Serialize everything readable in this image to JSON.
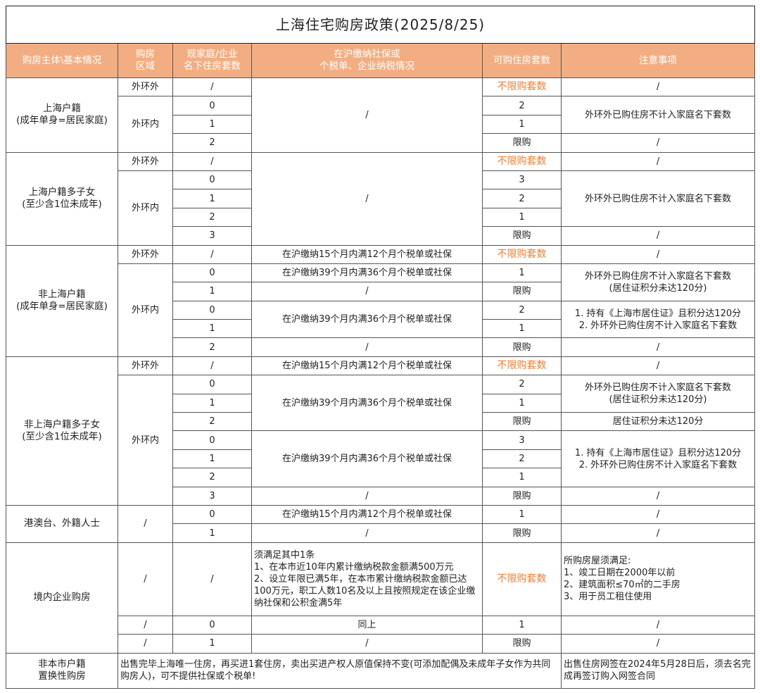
{
  "title": "上海住宅购房政策(2025/8/25)",
  "headers": [
    "购房主体\\基本情况",
    "购房\n区域",
    "现家庭/企业\n名下住房套数",
    "在沪缴纳社保或\n个税单、企业纳税情况",
    "可购住房套数",
    "注意事项"
  ],
  "colors": {
    "header_bg": "#f2ae82",
    "highlight_text": "#ee7d31"
  },
  "groups": [
    "上海户籍\n(成年单身=居民家庭)",
    "上海户籍多子女\n(至少含1位未成年)",
    "非上海户籍\n(成年单身=居民家庭)",
    "非上海户籍多子女\n(至少含1位未成年)",
    "港澳台、外籍人士",
    "境内企业购房",
    "非本市户籍\n置换性购房"
  ],
  "rows": [
    [
      "外环外",
      "/",
      "/",
      "不限购套数",
      "/"
    ],
    [
      "外环内",
      "0",
      "2",
      "外环外已购住房不计入家庭名下套数"
    ],
    [
      "1",
      "1"
    ],
    [
      "2",
      "限购",
      "/"
    ],
    [
      "外环外",
      "/",
      "/",
      "不限购套数",
      "/"
    ],
    [
      "外环内",
      "0",
      "3",
      "外环外已购住房不计入家庭名下套数"
    ],
    [
      "1",
      "2"
    ],
    [
      "2",
      "1"
    ],
    [
      "3",
      "限购",
      "/"
    ],
    [
      "外环外",
      "/",
      "在沪缴纳15个月内满12个月个税单或社保",
      "不限购套数",
      "/"
    ],
    [
      "外环内",
      "0",
      "在沪缴纳39个月内满36个月个税单或社保",
      "1",
      "外环外已购住房不计入家庭名下套数\n(居住证积分未达120分)"
    ],
    [
      "1",
      "/",
      "限购"
    ],
    [
      "0",
      "在沪缴纳39个月内满36个月个税单或社保",
      "2",
      "1. 持有《上海市居住证》且积分达120分\n2. 外环外已购住房不计入家庭名下套数"
    ],
    [
      "1",
      "1"
    ],
    [
      "2",
      "/",
      "限购",
      "/"
    ],
    [
      "外环外",
      "/",
      "在沪缴纳15个月内满12个月个税单或社保",
      "不限购套数",
      "/"
    ],
    [
      "外环内",
      "0",
      "在沪缴纳39个月内满36个月个税单或社保",
      "2",
      "外环外已购住房不计入家庭名下套数\n(居住证积分未达120分)"
    ],
    [
      "1",
      "1"
    ],
    [
      "2",
      "限购",
      "居住证积分未达120分"
    ],
    [
      "0",
      "在沪缴纳39个月内满36个月个税单或社保",
      "3",
      "1. 持有《上海市居住证》且积分达120分\n2. 外环外已购住房不计入家庭名下套数"
    ],
    [
      "1",
      "2"
    ],
    [
      "2",
      "1"
    ],
    [
      "3",
      "/",
      "限购",
      "/"
    ],
    [
      "/",
      "0",
      "在沪缴纳15个月内满12个月个税单或社保",
      "1",
      "/"
    ],
    [
      "1",
      "/",
      "限购",
      "/"
    ],
    [
      "/",
      "/",
      "须满足其中1条\n1、在本市近10年内累计缴纳税款金额满500万元\n2、设立年限已满5年，在本市累计缴纳税款金额已达100万元，职工人数10名及以上且按照规定在该企业缴纳社保和公积金满5年",
      "不限购套数",
      "所购房屋须满足:\n1、竣工日期在2000年以前\n2、建筑面积≤70㎡的二手房\n3、用于员工租住使用"
    ],
    [
      "/",
      "0",
      "同上",
      "1",
      "/"
    ],
    [
      "/",
      "1",
      "/",
      "限购",
      "/"
    ],
    [
      "出售完毕上海唯一住房，再买进1套住房，卖出买进产权人原值保持不变(可添加配偶及未成年子女作为共同购房人)，可不提供社保或个税单!",
      "出售住房网签在2024年5月28日后，须去名完成再签订购入网签合同"
    ]
  ]
}
